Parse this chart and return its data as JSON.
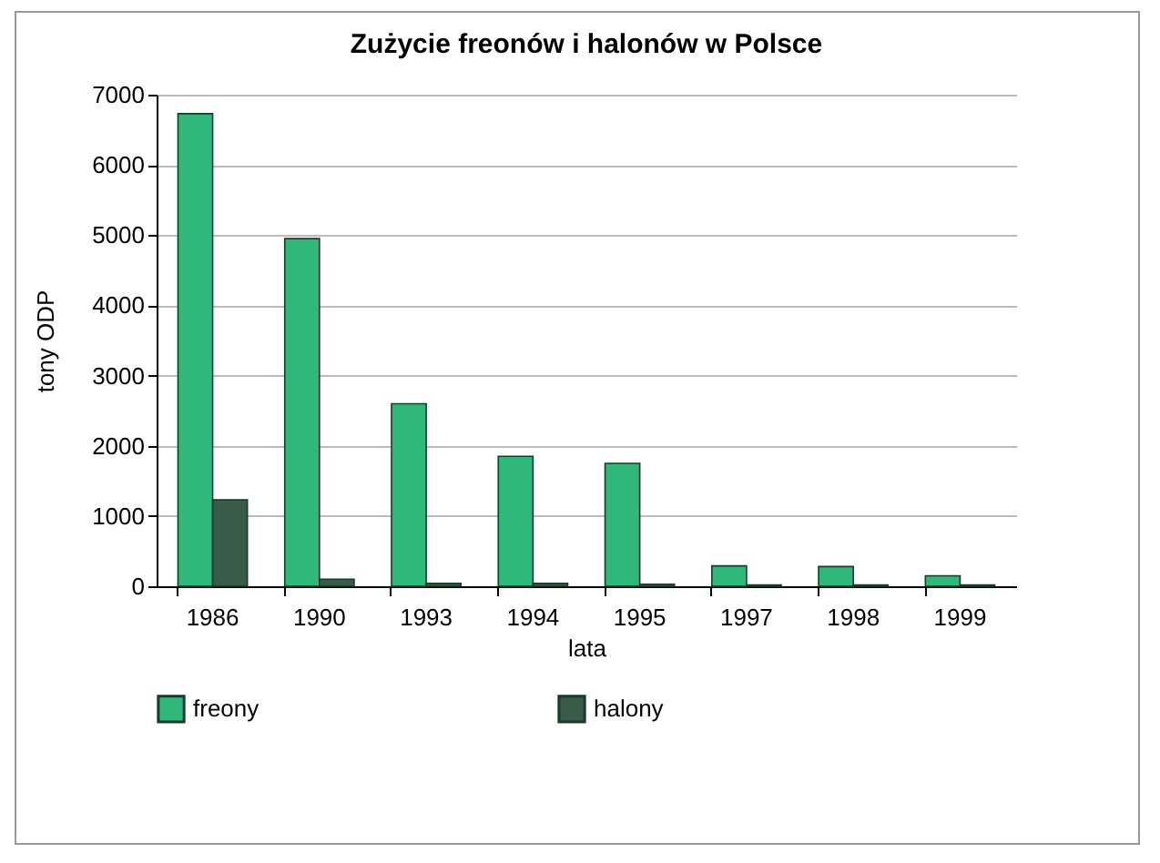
{
  "chart_data": {
    "type": "bar",
    "title": "Zużycie freonów i halonów w Polsce",
    "xlabel": "lata",
    "ylabel": "tony ODP",
    "categories": [
      "1986",
      "1990",
      "1993",
      "1994",
      "1995",
      "1997",
      "1998",
      "1999"
    ],
    "series": [
      {
        "name": "freony",
        "color": "#2fb87a",
        "values": [
          6730,
          4950,
          2600,
          1850,
          1750,
          290,
          280,
          150
        ]
      },
      {
        "name": "halony",
        "color": "#3a5a4a",
        "values": [
          1230,
          100,
          40,
          40,
          30,
          20,
          20,
          20
        ]
      }
    ],
    "ylim": [
      0,
      7000
    ],
    "yticks": [
      0,
      1000,
      2000,
      3000,
      4000,
      5000,
      6000,
      7000
    ],
    "grid": "y",
    "legend": "bottom"
  }
}
